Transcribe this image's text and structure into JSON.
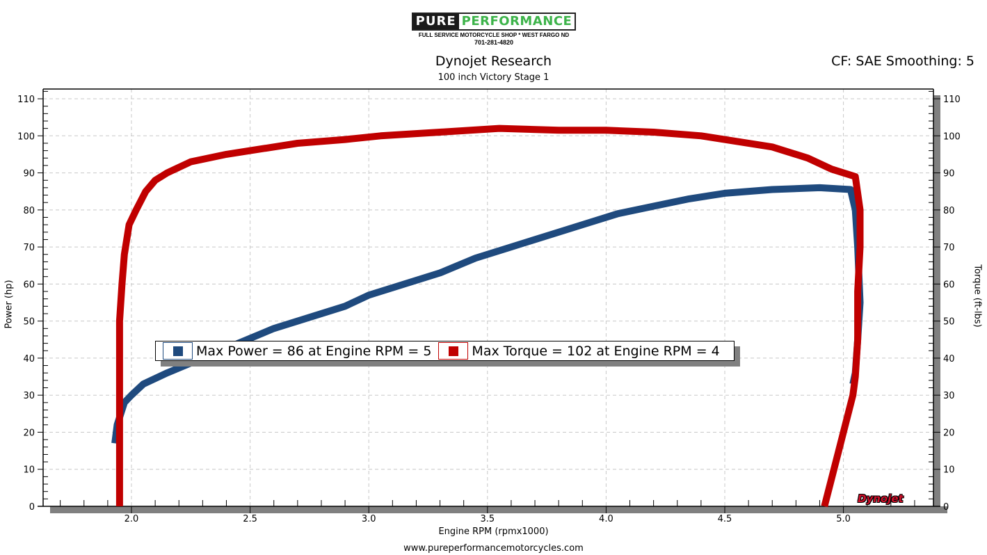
{
  "header": {
    "logo_left": "PURE",
    "logo_right": "PERFORMANCE",
    "logo_tagline": "FULL SERVICE MOTORCYCLE SHOP * WEST FARGO ND",
    "logo_phone": "701-281-4820",
    "title": "Dynojet Research",
    "subtitle": "100 inch Victory Stage 1",
    "correction": "CF: SAE Smoothing: 5"
  },
  "footer": {
    "url": "www.pureperformancemotorcycles.com",
    "watermark": "Dynojet"
  },
  "legend": {
    "power": "Max Power = 86 at Engine RPM = 5",
    "torque": "Max Torque = 102 at Engine RPM = 4"
  },
  "colors": {
    "power": "#1f4a7e",
    "torque": "#c00000",
    "grid": "#c8c8c8",
    "shadow": "#808080"
  },
  "chart_data": {
    "type": "line",
    "title": "Dynojet Research",
    "subtitle": "100 inch Victory Stage 1",
    "xlabel": "Engine RPM (rpmx1000)",
    "ylabel": "Power (hp)",
    "ylabel_right": "Torque (ft-lbs)",
    "xlim": [
      1.65,
      5.4
    ],
    "ylim": [
      0,
      112
    ],
    "x_ticks": [
      "2.0",
      "2.5",
      "3.0",
      "3.5",
      "4.0",
      "4.5",
      "5.0"
    ],
    "y_ticks": [
      0,
      10,
      20,
      30,
      40,
      50,
      60,
      70,
      80,
      90,
      100,
      110
    ],
    "grid": true,
    "legend_position": "center",
    "series": [
      {
        "name": "Power (hp)",
        "axis": "left",
        "x": [
          1.93,
          1.94,
          1.97,
          2.0,
          2.05,
          2.15,
          2.3,
          2.45,
          2.6,
          2.75,
          2.9,
          3.0,
          3.15,
          3.3,
          3.45,
          3.6,
          3.75,
          3.9,
          4.05,
          4.2,
          4.35,
          4.5,
          4.7,
          4.9,
          5.03,
          5.05,
          5.06,
          5.07,
          5.06,
          5.05,
          5.04
        ],
        "values": [
          17,
          22,
          28,
          30,
          33,
          36,
          40,
          44,
          48,
          51,
          54,
          57,
          60,
          63,
          67,
          70,
          73,
          76,
          79,
          81,
          83,
          84.5,
          85.5,
          86,
          85.5,
          80,
          70,
          55,
          45,
          36,
          33
        ]
      },
      {
        "name": "Torque (ft-lbs)",
        "axis": "right",
        "x": [
          1.95,
          1.95,
          1.95,
          1.96,
          1.97,
          1.99,
          2.02,
          2.06,
          2.1,
          2.15,
          2.25,
          2.4,
          2.5,
          2.7,
          2.9,
          3.05,
          3.3,
          3.55,
          3.8,
          4.0,
          4.2,
          4.4,
          4.55,
          4.7,
          4.85,
          4.95,
          5.05,
          5.07,
          5.07,
          5.06,
          5.06,
          5.05,
          5.04,
          4.98,
          4.92
        ],
        "values": [
          0,
          20,
          50,
          60,
          68,
          76,
          80,
          85,
          88,
          90,
          93,
          95,
          96,
          98,
          99,
          100,
          101,
          102,
          101.5,
          101.5,
          101,
          100,
          98.5,
          97,
          94,
          91,
          89,
          80,
          70,
          58,
          45,
          35,
          30,
          15,
          0
        ]
      }
    ],
    "annotations": [
      "Max Power = 86 at Engine RPM = 5",
      "Max Torque = 102 at Engine RPM = 4",
      "CF: SAE Smoothing: 5"
    ]
  }
}
